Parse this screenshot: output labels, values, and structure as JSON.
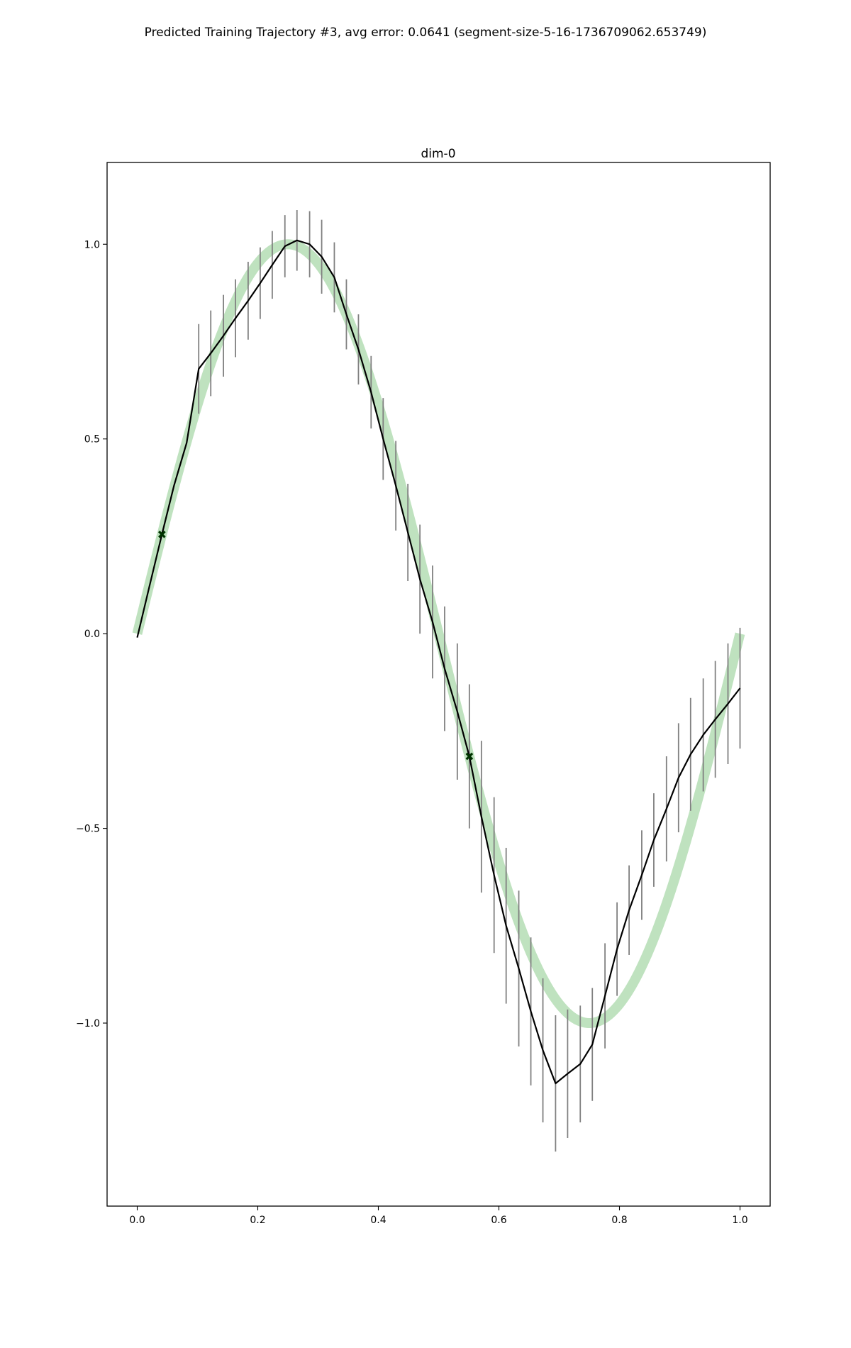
{
  "figure_title": "Predicted Training Trajectory #3, avg error: 0.0641 (segment-size-5-16-1736709062.653749)",
  "chart_data": {
    "type": "line",
    "title": "dim-0",
    "xlabel": "",
    "ylabel": "",
    "xlim": [
      -0.05,
      1.05
    ],
    "ylim": [
      -1.47,
      1.21
    ],
    "x_ticks": [
      0.0,
      0.2,
      0.4,
      0.6,
      0.8,
      1.0
    ],
    "x_tick_labels": [
      "0.0",
      "0.2",
      "0.4",
      "0.6",
      "0.8",
      "1.0"
    ],
    "y_ticks": [
      1.0,
      0.5,
      0.0,
      -0.5,
      -1.0
    ],
    "y_tick_labels": [
      "1.0",
      "0.5",
      "0.0",
      "−0.5",
      "−1.0"
    ],
    "grid": false,
    "series": [
      {
        "role": "ground-truth",
        "function": "sin(2*pi*x)",
        "x_range": [
          0.0,
          1.0
        ],
        "color": "#2ca02c",
        "opacity": 0.3
      },
      {
        "role": "prediction",
        "color": "#000000",
        "x": [
          0.0,
          0.02,
          0.041,
          0.061,
          0.082,
          0.102,
          0.122,
          0.143,
          0.163,
          0.184,
          0.204,
          0.224,
          0.245,
          0.265,
          0.286,
          0.306,
          0.327,
          0.347,
          0.367,
          0.388,
          0.408,
          0.429,
          0.449,
          0.469,
          0.49,
          0.51,
          0.531,
          0.551,
          0.571,
          0.592,
          0.612,
          0.633,
          0.653,
          0.673,
          0.694,
          0.714,
          0.735,
          0.755,
          0.776,
          0.796,
          0.816,
          0.837,
          0.857,
          0.878,
          0.898,
          0.918,
          0.939,
          0.959,
          0.98,
          1.0
        ],
        "y": [
          -0.01,
          0.12,
          0.255,
          0.38,
          0.49,
          0.68,
          0.72,
          0.765,
          0.81,
          0.855,
          0.9,
          0.947,
          0.995,
          1.01,
          1.0,
          0.968,
          0.915,
          0.82,
          0.73,
          0.62,
          0.5,
          0.38,
          0.26,
          0.14,
          0.03,
          -0.09,
          -0.2,
          -0.315,
          -0.47,
          -0.62,
          -0.75,
          -0.86,
          -0.97,
          -1.07,
          -1.155,
          -1.13,
          -1.105,
          -1.055,
          -0.93,
          -0.81,
          -0.71,
          -0.62,
          -0.53,
          -0.45,
          -0.37,
          -0.31,
          -0.26,
          -0.22,
          -0.18,
          -0.14
        ],
        "err": [
          0.0,
          0.0,
          0.0,
          0.0,
          0.0,
          0.115,
          0.11,
          0.105,
          0.1,
          0.1,
          0.092,
          0.087,
          0.08,
          0.078,
          0.085,
          0.095,
          0.09,
          0.09,
          0.09,
          0.093,
          0.105,
          0.115,
          0.125,
          0.14,
          0.145,
          0.16,
          0.175,
          0.185,
          0.195,
          0.2,
          0.2,
          0.2,
          0.19,
          0.185,
          0.175,
          0.165,
          0.15,
          0.145,
          0.135,
          0.12,
          0.115,
          0.115,
          0.12,
          0.135,
          0.14,
          0.145,
          0.145,
          0.15,
          0.155,
          0.155
        ]
      },
      {
        "role": "observed-points",
        "marker": "x",
        "color": "#003300",
        "x": [
          0.041,
          0.551
        ],
        "y": [
          0.255,
          -0.315
        ]
      }
    ]
  }
}
